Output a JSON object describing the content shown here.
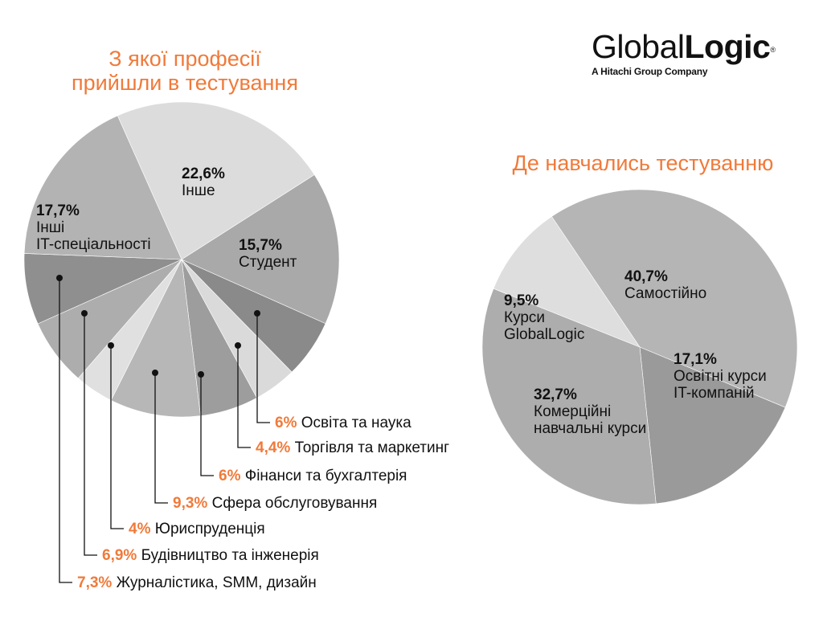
{
  "logo": {
    "brand_light": "Global",
    "brand_bold": "Logic",
    "registered": "®",
    "tagline": "A Hitachi Group Company"
  },
  "accent_color": "#f07a3a",
  "chart_data": [
    {
      "type": "pie",
      "title": "З якої професії прийшли в тестування",
      "title_lines": [
        "З якої професії",
        "прийшли в тестування"
      ],
      "slices": [
        {
          "value": 22.6,
          "pct": "22,6%",
          "name": "Інше",
          "lines": [
            "Інше"
          ],
          "color": "#dcdcdc",
          "label_mode": "inside"
        },
        {
          "value": 15.7,
          "pct": "15,7%",
          "name": "Студент",
          "lines": [
            "Студент"
          ],
          "color": "#a9a9a9",
          "label_mode": "inside"
        },
        {
          "value": 6.0,
          "pct": "6%",
          "name": "Освіта та наука",
          "color": "#8a8a8a",
          "label_mode": "callout"
        },
        {
          "value": 4.4,
          "pct": "4,4%",
          "name": "Торгівля та маркетинг",
          "color": "#dadada",
          "label_mode": "callout"
        },
        {
          "value": 6.0,
          "pct": "6%",
          "name": "Фінанси та бухгалтерія",
          "color": "#9d9d9d",
          "label_mode": "callout"
        },
        {
          "value": 9.3,
          "pct": "9,3%",
          "name": "Сфера обслуговування",
          "color": "#b7b7b7",
          "label_mode": "callout"
        },
        {
          "value": 4.0,
          "pct": "4%",
          "name": "Юриспруденція",
          "color": "#e0e0e0",
          "label_mode": "callout"
        },
        {
          "value": 6.9,
          "pct": "6,9%",
          "name": "Будівництво та інженерія",
          "color": "#adadad",
          "label_mode": "callout"
        },
        {
          "value": 7.3,
          "pct": "7,3%",
          "name": "Журналістика, SMM, дизайн",
          "color": "#8f8f8f",
          "label_mode": "callout"
        },
        {
          "value": 17.7,
          "pct": "17,7%",
          "name": "Інші IT-спеціальності",
          "lines": [
            "Інші",
            "IT-спеціальності"
          ],
          "color": "#b3b3b3",
          "label_mode": "inside"
        }
      ]
    },
    {
      "type": "pie",
      "title": "Де навчались тестуванню",
      "title_lines": [
        "Де навчались тестуванню"
      ],
      "slices": [
        {
          "value": 40.7,
          "pct": "40,7%",
          "name": "Самостійно",
          "lines": [
            "Самостійно"
          ],
          "color": "#b5b5b5",
          "label_mode": "inside"
        },
        {
          "value": 17.1,
          "pct": "17,1%",
          "name": "Освітні курси IT-компаній",
          "lines": [
            "Освітні курси",
            "IT-компаній"
          ],
          "color": "#9a9a9a",
          "label_mode": "inside"
        },
        {
          "value": 32.7,
          "pct": "32,7%",
          "name": "Комерційні навчальні курси",
          "lines": [
            "Комерційні",
            "навчальні курси"
          ],
          "color": "#adadad",
          "label_mode": "inside"
        },
        {
          "value": 9.5,
          "pct": "9,5%",
          "name": "Курси GlobalLogic",
          "lines": [
            "Курси",
            "GlobalLogic"
          ],
          "color": "#dedede",
          "label_mode": "inside"
        }
      ]
    }
  ]
}
